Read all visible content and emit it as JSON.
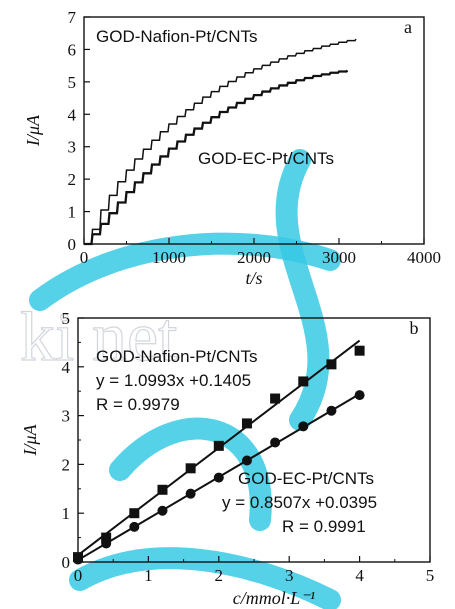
{
  "watermark": {
    "color": "#37c9e4",
    "text": "ki net"
  },
  "chart_data": [
    {
      "type": "line",
      "panel_label": "a",
      "xlabel": "t/s",
      "ylabel": "I/μA",
      "xlim": [
        0,
        4000
      ],
      "ylim": [
        0,
        7
      ],
      "xticks": [
        "0",
        "1000",
        "2000",
        "3000",
        "4000"
      ],
      "yticks": [
        "0",
        "1",
        "2",
        "3",
        "4",
        "5",
        "6",
        "7"
      ],
      "grid": false,
      "series": [
        {
          "name": "GOD-Nafion-Pt/CNTs",
          "color": "#111111",
          "step": true,
          "x": [
            0,
            100,
            200,
            300,
            400,
            500,
            600,
            700,
            800,
            900,
            1000,
            1100,
            1200,
            1300,
            1400,
            1500,
            1600,
            1700,
            1800,
            1900,
            2000,
            2100,
            2200,
            2300,
            2400,
            2500,
            2600,
            2700,
            2800,
            2900,
            3000,
            3100,
            3200
          ],
          "y": [
            0,
            0.45,
            1.05,
            1.5,
            1.92,
            2.28,
            2.62,
            2.92,
            3.2,
            3.46,
            3.7,
            3.93,
            4.14,
            4.34,
            4.53,
            4.7,
            4.86,
            5.01,
            5.15,
            5.28,
            5.4,
            5.51,
            5.61,
            5.71,
            5.8,
            5.88,
            5.96,
            6.03,
            6.1,
            6.16,
            6.22,
            6.27,
            6.32
          ]
        },
        {
          "name": "GOD-EC-Pt/CNTs",
          "color": "#111111",
          "step": true,
          "x": [
            0,
            100,
            200,
            300,
            400,
            500,
            600,
            700,
            800,
            900,
            1000,
            1100,
            1200,
            1300,
            1400,
            1500,
            1600,
            1700,
            1800,
            1900,
            2000,
            2100,
            2200,
            2300,
            2400,
            2500,
            2600,
            2700,
            2800,
            2900,
            3000,
            3100
          ],
          "y": [
            0,
            0.3,
            0.62,
            0.95,
            1.28,
            1.6,
            1.9,
            2.18,
            2.45,
            2.7,
            2.94,
            3.16,
            3.37,
            3.56,
            3.74,
            3.91,
            4.07,
            4.21,
            4.35,
            4.48,
            4.59,
            4.7,
            4.8,
            4.89,
            4.97,
            5.05,
            5.12,
            5.18,
            5.23,
            5.28,
            5.32,
            5.35
          ]
        }
      ],
      "annotations": [
        {
          "text": "GOD-Nafion-Pt/CNTs"
        },
        {
          "text": "GOD-EC-Pt/CNTs"
        }
      ]
    },
    {
      "type": "scatter",
      "panel_label": "b",
      "xlabel": "c/mmol·L⁻¹",
      "ylabel": "I/μA",
      "xlim": [
        0,
        5
      ],
      "ylim": [
        0,
        5
      ],
      "xticks": [
        "0",
        "1",
        "2",
        "3",
        "4",
        "5"
      ],
      "yticks": [
        "0",
        "1",
        "2",
        "3",
        "4",
        "5"
      ],
      "grid": false,
      "series": [
        {
          "name": "GOD-Nafion-Pt/CNTs",
          "marker": "square",
          "fit": {
            "slope": 1.0993,
            "intercept": 0.1405
          },
          "x": [
            0,
            0.4,
            0.8,
            1.2,
            1.6,
            2.0,
            2.4,
            2.8,
            3.2,
            3.6,
            4.0
          ],
          "y": [
            0.1,
            0.5,
            1.0,
            1.48,
            1.92,
            2.38,
            2.84,
            3.35,
            3.7,
            4.05,
            4.33
          ]
        },
        {
          "name": "GOD-EC-Pt/CNTs",
          "marker": "circle",
          "fit": {
            "slope": 0.8507,
            "intercept": 0.0395
          },
          "x": [
            0,
            0.4,
            0.8,
            1.2,
            1.6,
            2.0,
            2.4,
            2.8,
            3.2,
            3.6,
            4.0
          ],
          "y": [
            0.05,
            0.38,
            0.72,
            1.05,
            1.4,
            1.73,
            2.08,
            2.45,
            2.78,
            3.1,
            3.42
          ]
        }
      ],
      "annotations": [
        {
          "lines": [
            "GOD-Nafion-Pt/CNTs",
            "y = 1.0993x +0.1405",
            "R = 0.9979"
          ]
        },
        {
          "lines": [
            "GOD-EC-Pt/CNTs",
            "y = 0.8507x +0.0395",
            "R = 0.9991"
          ]
        }
      ]
    }
  ]
}
